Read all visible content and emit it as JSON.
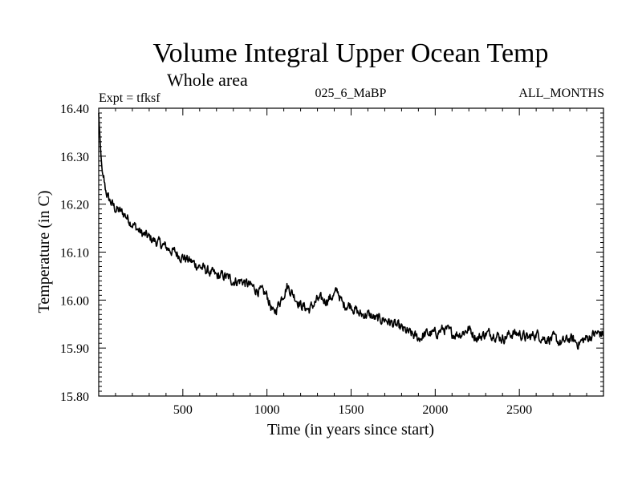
{
  "chart_data": {
    "type": "line",
    "title": "Volume Integral Upper Ocean Temp",
    "subtitle": "Whole area",
    "experiment_label": "Expt = tfksf",
    "run_label": "025_6_MaBP",
    "period_label": "ALL_MONTHS",
    "xlabel": "Time (in years since start)",
    "ylabel": "Temperature (in C)",
    "xlim": [
      0,
      3000
    ],
    "ylim": [
      15.8,
      16.4
    ],
    "x_ticks": [
      500,
      1000,
      1500,
      2000,
      2500
    ],
    "y_ticks": [
      "16.40",
      "16.30",
      "16.20",
      "16.10",
      "16.00",
      "15.90",
      "15.80"
    ],
    "grid": false,
    "series": [
      {
        "name": "Volume integral upper ocean temperature",
        "color": "#000000",
        "x": [
          0,
          10,
          20,
          40,
          60,
          80,
          100,
          150,
          200,
          250,
          300,
          350,
          400,
          450,
          500,
          550,
          600,
          650,
          700,
          750,
          800,
          850,
          900,
          950,
          1000,
          1040,
          1080,
          1120,
          1160,
          1200,
          1250,
          1300,
          1350,
          1400,
          1420,
          1450,
          1500,
          1550,
          1600,
          1650,
          1700,
          1750,
          1800,
          1850,
          1900,
          1950,
          2000,
          2050,
          2100,
          2150,
          2200,
          2250,
          2300,
          2350,
          2400,
          2450,
          2500,
          2550,
          2600,
          2650,
          2700,
          2750,
          2800,
          2850,
          2900,
          2950,
          3000
        ],
        "values": [
          16.39,
          16.32,
          16.27,
          16.23,
          16.21,
          16.2,
          16.19,
          16.18,
          16.16,
          16.14,
          16.13,
          16.12,
          16.11,
          16.1,
          16.09,
          16.08,
          16.07,
          16.06,
          16.05,
          16.05,
          16.04,
          16.04,
          16.03,
          16.02,
          16.01,
          15.97,
          16.0,
          16.03,
          16.01,
          15.99,
          15.98,
          16.0,
          16.0,
          16.01,
          16.02,
          15.99,
          15.99,
          15.97,
          15.97,
          15.96,
          15.96,
          15.95,
          15.94,
          15.93,
          15.92,
          15.93,
          15.93,
          15.94,
          15.93,
          15.93,
          15.94,
          15.92,
          15.93,
          15.93,
          15.92,
          15.93,
          15.93,
          15.92,
          15.93,
          15.92,
          15.92,
          15.91,
          15.92,
          15.91,
          15.92,
          15.93,
          15.93
        ]
      }
    ]
  }
}
